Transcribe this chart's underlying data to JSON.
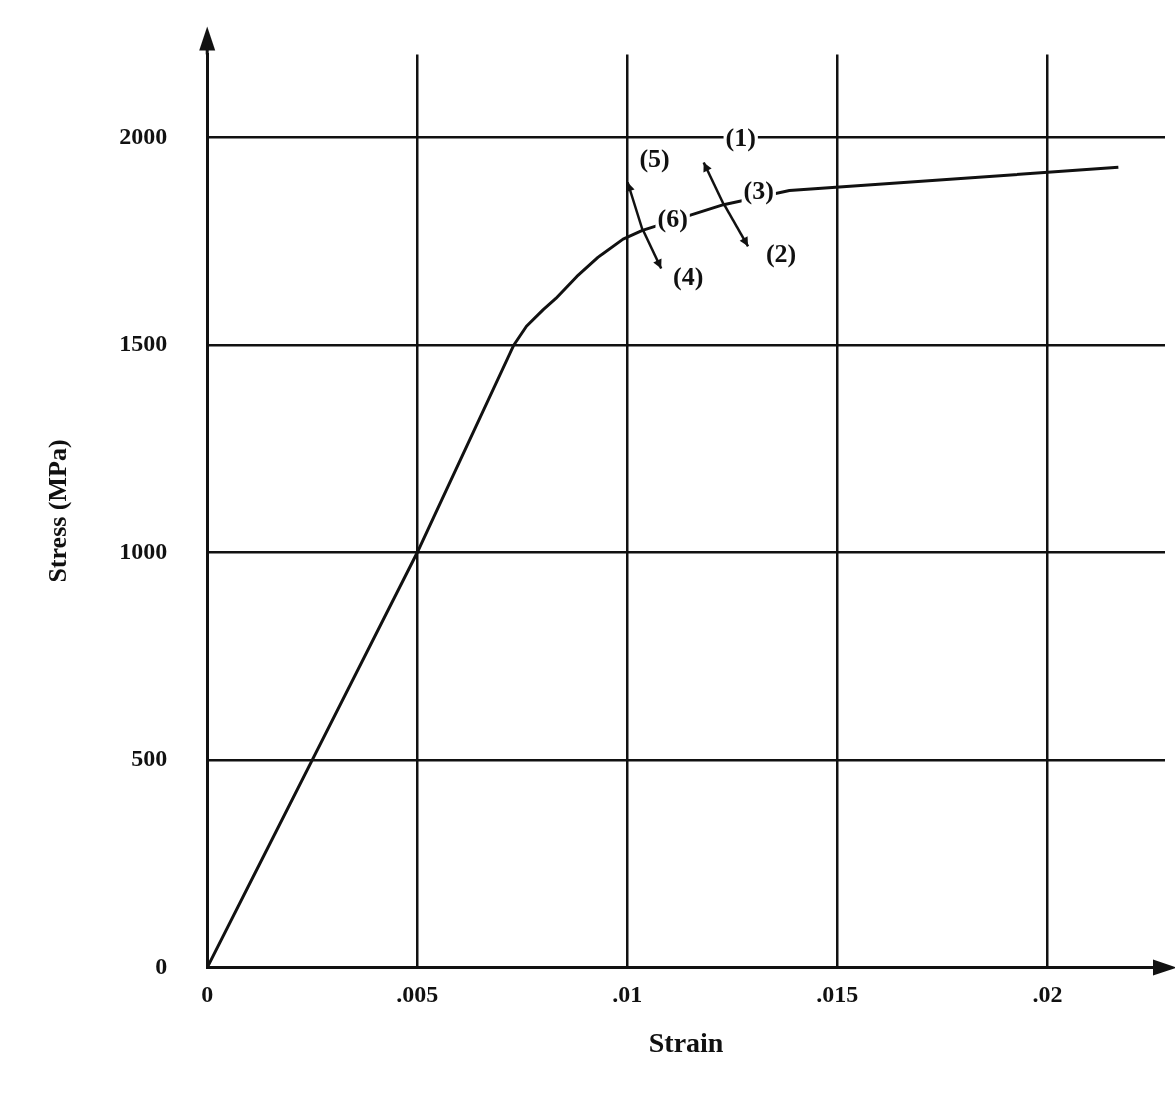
{
  "chart_data": {
    "type": "line",
    "xlabel": "Strain",
    "ylabel": "Stress (MPa)",
    "x": [
      0,
      0.005,
      0.0073,
      0.0076,
      0.008,
      0.0083,
      0.0088,
      0.0093,
      0.0099,
      0.01036,
      0.01229,
      0.01386,
      0.02169
    ],
    "series": [
      {
        "color": "#111111",
        "values": [
          0,
          1000,
          1500,
          1545,
          1585,
          1612,
          1665,
          1711,
          1755,
          1776,
          1838,
          1872,
          1928
        ]
      }
    ],
    "xlim": [
      0,
      0.0228
    ],
    "ylim": [
      0,
      2200
    ],
    "xticks": [
      0,
      {
        "value": 0.005,
        "label": ".005"
      },
      {
        "value": 0.01,
        "label": ".01"
      },
      {
        "value": 0.015,
        "label": ".015"
      },
      {
        "value": 0.02,
        "label": ".02"
      }
    ],
    "yticks": [
      0,
      500,
      1000,
      1500,
      2000
    ],
    "grid": true,
    "legend": false,
    "marker": "none",
    "line_style": "solid",
    "annotations": [
      {
        "text": "(1)",
        "x": 0.0127,
        "y": 1995
      },
      {
        "text": "(2)",
        "x": 0.01366,
        "y": 1716
      },
      {
        "text": "(3)",
        "x": 0.01313,
        "y": 1867
      },
      {
        "text": "(4)",
        "x": 0.01145,
        "y": 1660
      },
      {
        "text": "(5)",
        "x": 0.01065,
        "y": 1945
      },
      {
        "text": "(6)",
        "x": 0.01108,
        "y": 1800
      }
    ]
  }
}
